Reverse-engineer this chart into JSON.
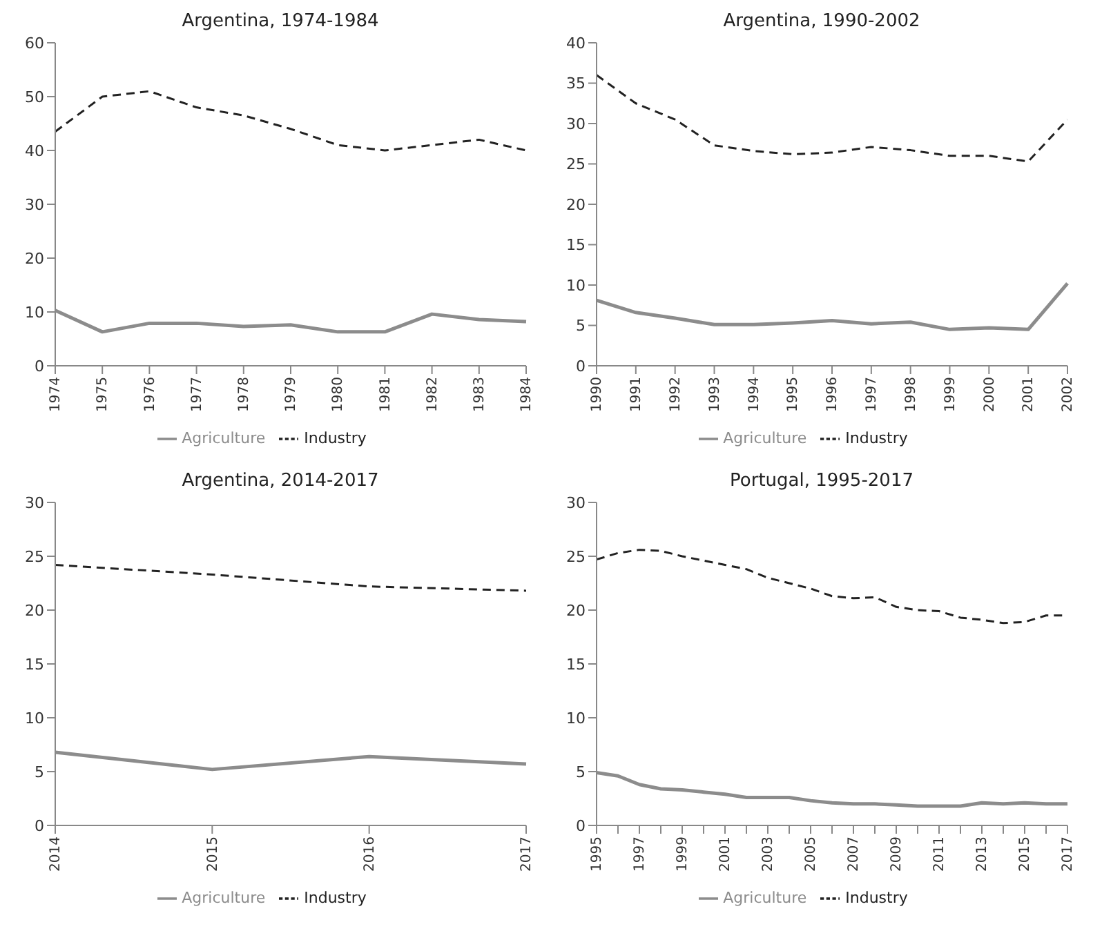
{
  "chart_data": [
    {
      "type": "line",
      "title": "Argentina, 1974-1984",
      "categories": [
        "1974",
        "1975",
        "1976",
        "1977",
        "1978",
        "1979",
        "1980",
        "1981",
        "1982",
        "1983",
        "1984"
      ],
      "ylim": [
        0,
        60
      ],
      "yticks": [
        0,
        10,
        20,
        30,
        40,
        50,
        60
      ],
      "grid": false,
      "legend": "bottom",
      "marker": "none",
      "series": [
        {
          "name": "Agriculture",
          "color": "#8c8c8c",
          "line_style": "solid",
          "values": [
            10.3,
            6.3,
            7.9,
            7.9,
            7.3,
            7.6,
            6.3,
            6.3,
            9.6,
            8.6,
            8.2
          ]
        },
        {
          "name": "Industry",
          "color": "#222222",
          "line_style": "dashed",
          "values": [
            43.5,
            50,
            51,
            48,
            46.5,
            44,
            41,
            40,
            41,
            42,
            40
          ]
        }
      ]
    },
    {
      "type": "line",
      "title": "Argentina, 1990-2002",
      "categories": [
        "1990",
        "1991",
        "1992",
        "1993",
        "1994",
        "1995",
        "1996",
        "1997",
        "1998",
        "1999",
        "2000",
        "2001",
        "2002"
      ],
      "ylim": [
        0,
        40
      ],
      "yticks": [
        0,
        5,
        10,
        15,
        20,
        25,
        30,
        35,
        40
      ],
      "grid": false,
      "legend": "bottom",
      "marker": "none",
      "series": [
        {
          "name": "Agriculture",
          "color": "#8c8c8c",
          "line_style": "solid",
          "values": [
            8.1,
            6.6,
            5.9,
            5.1,
            5.1,
            5.3,
            5.6,
            5.2,
            5.4,
            4.5,
            4.7,
            4.5,
            10.2
          ]
        },
        {
          "name": "Industry",
          "color": "#222222",
          "line_style": "dashed",
          "values": [
            36,
            32.5,
            30.5,
            27.3,
            26.6,
            26.2,
            26.4,
            27.1,
            26.7,
            26,
            26,
            25.3,
            30.5
          ]
        }
      ]
    },
    {
      "type": "line",
      "title": "Argentina, 2014-2017",
      "categories": [
        "2014",
        "2015",
        "2016",
        "2017"
      ],
      "ylim": [
        0,
        30
      ],
      "yticks": [
        0,
        5,
        10,
        15,
        20,
        25,
        30
      ],
      "grid": false,
      "legend": "bottom",
      "marker": "none",
      "series": [
        {
          "name": "Agriculture",
          "color": "#8c8c8c",
          "line_style": "solid",
          "values": [
            6.8,
            5.2,
            6.4,
            5.7
          ]
        },
        {
          "name": "Industry",
          "color": "#222222",
          "line_style": "dashed",
          "values": [
            24.2,
            23.3,
            22.2,
            21.8
          ]
        }
      ]
    },
    {
      "type": "line",
      "title": "Portugal, 1995-2017",
      "categories": [
        "1995",
        null,
        "1997",
        null,
        "1999",
        null,
        "2001",
        null,
        "2003",
        null,
        "2005",
        null,
        "2007",
        null,
        "2009",
        null,
        "2011",
        null,
        "2013",
        null,
        "2015",
        null,
        "2017"
      ],
      "ylim": [
        0,
        30
      ],
      "yticks": [
        0,
        5,
        10,
        15,
        20,
        25,
        30
      ],
      "grid": false,
      "legend": "bottom",
      "marker": "none",
      "series": [
        {
          "name": "Agriculture",
          "color": "#8c8c8c",
          "line_style": "solid",
          "values": [
            4.9,
            4.6,
            3.8,
            3.4,
            3.3,
            3.1,
            2.9,
            2.6,
            2.6,
            2.6,
            2.3,
            2.1,
            2.0,
            2.0,
            1.9,
            1.8,
            1.8,
            1.8,
            2.1,
            2.0,
            2.1,
            2.0,
            2.0
          ]
        },
        {
          "name": "Industry",
          "color": "#222222",
          "line_style": "dashed",
          "values": [
            24.7,
            25.3,
            25.6,
            25.5,
            25.0,
            24.6,
            24.2,
            23.8,
            23.0,
            22.5,
            22.0,
            21.3,
            21.1,
            21.2,
            20.3,
            20.0,
            19.9,
            19.3,
            19.1,
            18.8,
            18.9,
            19.5,
            19.5
          ]
        }
      ]
    }
  ]
}
